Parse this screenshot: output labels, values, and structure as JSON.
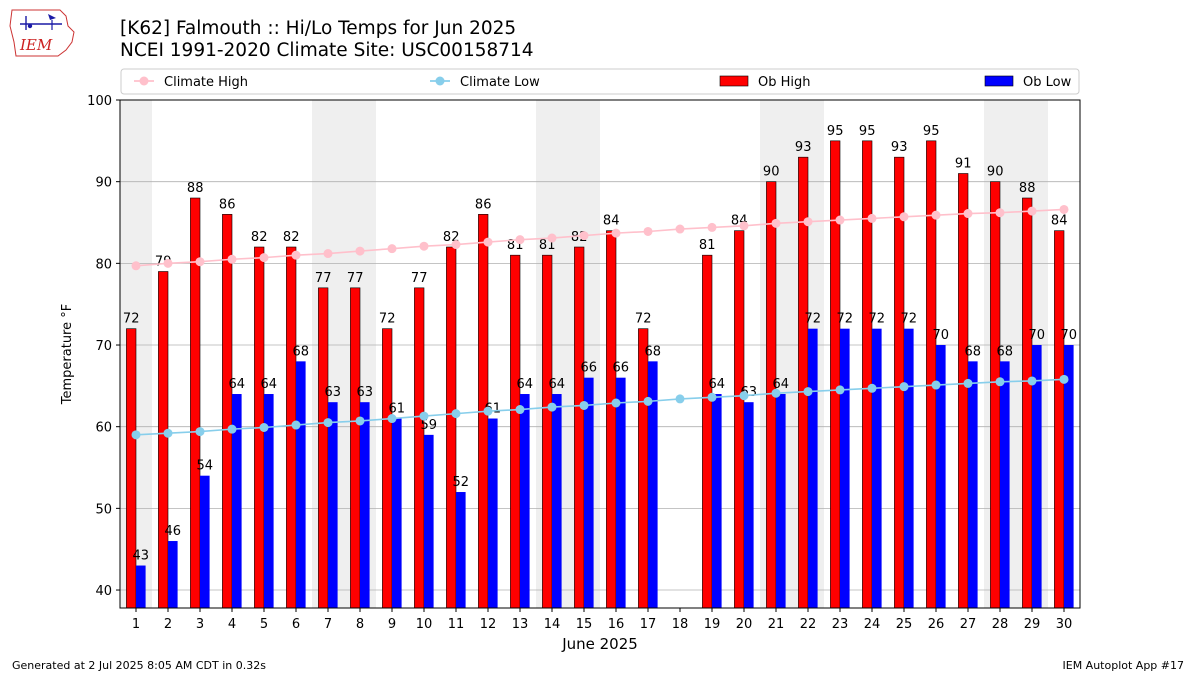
{
  "header": {
    "title_line1": "[K62] Falmouth :: Hi/Lo Temps for Jun 2025",
    "title_line2": "NCEI 1991-2020 Climate Site: USC00158714",
    "logo_text": "IEM"
  },
  "footer": {
    "left": "Generated at 2 Jul 2025 8:05 AM CDT in 0.32s",
    "right": "IEM Autoplot App #17"
  },
  "chart_data": {
    "type": "bar",
    "xlabel": "June 2025",
    "ylabel": "Temperature °F",
    "ylim": [
      37.8,
      100
    ],
    "yticks": [
      40,
      50,
      60,
      70,
      80,
      90,
      100
    ],
    "grid": "horizontal",
    "weekend_shading": [
      [
        1,
        1
      ],
      [
        7,
        8
      ],
      [
        14,
        15
      ],
      [
        21,
        22
      ],
      [
        28,
        29
      ]
    ],
    "legend": {
      "placement": "top",
      "entries": [
        {
          "label": "Climate High",
          "kind": "line",
          "color": "#FFC0CB"
        },
        {
          "label": "Climate Low",
          "kind": "line",
          "color": "#87CEEB"
        },
        {
          "label": "Ob High",
          "kind": "bar",
          "color": "#FF0000"
        },
        {
          "label": "Ob Low",
          "kind": "bar",
          "color": "#0000FF"
        }
      ]
    },
    "categories": [
      1,
      2,
      3,
      4,
      5,
      6,
      7,
      8,
      9,
      10,
      11,
      12,
      13,
      14,
      15,
      16,
      17,
      18,
      19,
      20,
      21,
      22,
      23,
      24,
      25,
      26,
      27,
      28,
      29,
      30
    ],
    "series": [
      {
        "name": "Ob High",
        "color": "#FF0000",
        "values": [
          72,
          79,
          88,
          86,
          82,
          82,
          77,
          77,
          72,
          77,
          82,
          86,
          81,
          81,
          82,
          84,
          72,
          null,
          81,
          84,
          90,
          93,
          95,
          95,
          93,
          95,
          91,
          90,
          88,
          84
        ]
      },
      {
        "name": "Ob Low",
        "color": "#0000FF",
        "values": [
          43,
          46,
          54,
          64,
          64,
          68,
          63,
          63,
          61,
          59,
          52,
          61,
          64,
          64,
          66,
          66,
          68,
          null,
          64,
          63,
          64,
          72,
          72,
          72,
          72,
          70,
          68,
          68,
          70,
          70
        ]
      },
      {
        "name": "Climate High",
        "color": "#FFC0CB",
        "values": [
          79.7,
          80.0,
          80.2,
          80.5,
          80.7,
          81.0,
          81.2,
          81.5,
          81.8,
          82.1,
          82.3,
          82.6,
          82.9,
          83.1,
          83.4,
          83.7,
          83.9,
          84.2,
          84.4,
          84.6,
          84.9,
          85.1,
          85.3,
          85.5,
          85.7,
          85.9,
          86.1,
          86.2,
          86.4,
          86.6
        ]
      },
      {
        "name": "Climate Low",
        "color": "#87CEEB",
        "values": [
          59.0,
          59.2,
          59.4,
          59.7,
          59.9,
          60.2,
          60.5,
          60.7,
          61.0,
          61.3,
          61.6,
          61.9,
          62.1,
          62.4,
          62.6,
          62.9,
          63.1,
          63.4,
          63.6,
          63.8,
          64.1,
          64.3,
          64.5,
          64.7,
          64.9,
          65.1,
          65.3,
          65.5,
          65.6,
          65.8
        ]
      }
    ]
  }
}
